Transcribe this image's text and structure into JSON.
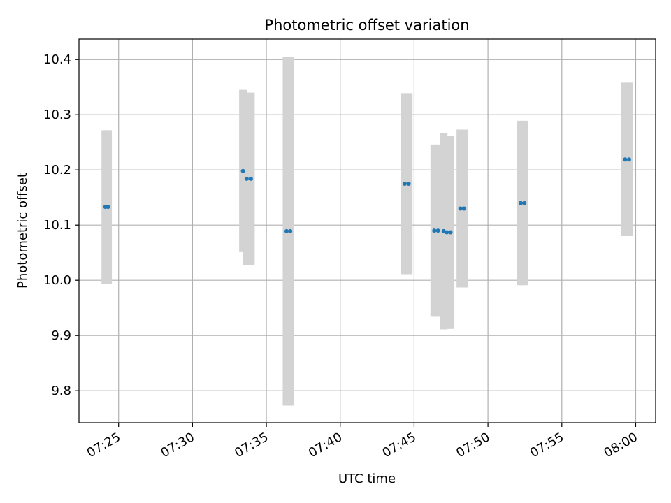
{
  "chart_data": {
    "type": "scatter",
    "title": "Photometric offset variation",
    "xlabel": "UTC time",
    "ylabel": "Photometric offset",
    "x_ticks": [
      "07:25",
      "07:30",
      "07:35",
      "07:40",
      "07:45",
      "07:50",
      "07:55",
      "08:00"
    ],
    "y_ticks": [
      "9.8",
      "9.9",
      "10.0",
      "10.1",
      "10.2",
      "10.3",
      "10.4"
    ],
    "xlim": [
      "07:22:19",
      "08:01:21"
    ],
    "ylim": [
      9.742,
      10.437
    ],
    "grid": true,
    "colors": {
      "points": "#1f77b4",
      "error_bars": "#d3d3d3",
      "grid": "#b0b0b0"
    },
    "series": [
      {
        "points": [
          {
            "x": "07:24:06",
            "y": 10.133,
            "yerr": 0.139
          },
          {
            "x": "07:24:17",
            "y": 10.133,
            "yerr": 0.139
          },
          {
            "x": "07:33:25",
            "y": 10.198,
            "yerr": 0.147
          },
          {
            "x": "07:33:40",
            "y": 10.184,
            "yerr": 0.156
          },
          {
            "x": "07:33:57",
            "y": 10.184,
            "yerr": 0.156
          },
          {
            "x": "07:36:22",
            "y": 10.089,
            "yerr": 0.316
          },
          {
            "x": "07:36:37",
            "y": 10.089,
            "yerr": 0.316
          },
          {
            "x": "07:44:22",
            "y": 10.175,
            "yerr": 0.164
          },
          {
            "x": "07:44:38",
            "y": 10.175,
            "yerr": 0.164
          },
          {
            "x": "07:46:22",
            "y": 10.09,
            "yerr": 0.156
          },
          {
            "x": "07:46:37",
            "y": 10.09,
            "yerr": 0.156
          },
          {
            "x": "07:47:00",
            "y": 10.089,
            "yerr": 0.178
          },
          {
            "x": "07:47:13",
            "y": 10.087,
            "yerr": 0.175
          },
          {
            "x": "07:47:28",
            "y": 10.087,
            "yerr": 0.175
          },
          {
            "x": "07:48:08",
            "y": 10.13,
            "yerr": 0.143
          },
          {
            "x": "07:48:23",
            "y": 10.13,
            "yerr": 0.143
          },
          {
            "x": "07:52:13",
            "y": 10.14,
            "yerr": 0.149
          },
          {
            "x": "07:52:28",
            "y": 10.14,
            "yerr": 0.149
          },
          {
            "x": "07:59:17",
            "y": 10.219,
            "yerr": 0.139
          },
          {
            "x": "07:59:33",
            "y": 10.219,
            "yerr": 0.139
          }
        ]
      }
    ]
  }
}
